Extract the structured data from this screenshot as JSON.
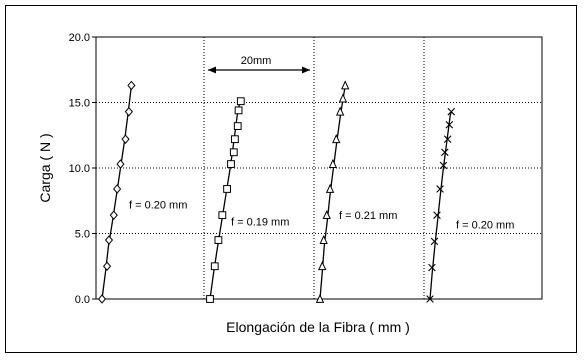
{
  "chart_data": {
    "type": "scatter",
    "xlabel": "Elongación de la Fibra ( mm )",
    "ylabel": "Carga ( N )",
    "ylim": [
      0,
      20
    ],
    "yticks": [
      "0.0",
      "5.0",
      "10.0",
      "15.0",
      "20.0"
    ],
    "grid": "vertical dotted separators and horizontal dotted gridlines",
    "annotation": "20mm",
    "series": [
      {
        "marker": "diamond",
        "label": "f  = 0.20 mm",
        "points": [
          [
            0.0,
            0.0
          ],
          [
            0.18,
            2.5
          ],
          [
            0.25,
            4.5
          ],
          [
            0.42,
            6.4
          ],
          [
            0.54,
            8.4
          ],
          [
            0.66,
            10.3
          ],
          [
            0.84,
            12.2
          ],
          [
            0.96,
            14.3
          ],
          [
            1.05,
            16.3
          ]
        ],
        "fit": [
          [
            0.0,
            0.0
          ],
          [
            0.12,
            2.0
          ],
          [
            0.23,
            4.0
          ],
          [
            0.38,
            6.0
          ],
          [
            0.52,
            8.0
          ],
          [
            0.66,
            10.0
          ],
          [
            0.8,
            12.0
          ],
          [
            0.92,
            14.0
          ],
          [
            1.05,
            16.3
          ]
        ]
      },
      {
        "marker": "square",
        "label": "f = 0.19 mm",
        "points": [
          [
            0.0,
            0.0
          ],
          [
            0.17,
            2.5
          ],
          [
            0.3,
            4.5
          ],
          [
            0.44,
            6.4
          ],
          [
            0.61,
            8.4
          ],
          [
            0.75,
            10.3
          ],
          [
            0.85,
            11.2
          ],
          [
            0.89,
            12.2
          ],
          [
            0.99,
            13.2
          ],
          [
            1.02,
            14.4
          ],
          [
            1.1,
            15.1
          ]
        ],
        "fit": [
          [
            0.0,
            0.0
          ],
          [
            0.13,
            2.0
          ],
          [
            0.27,
            4.0
          ],
          [
            0.42,
            6.0
          ],
          [
            0.57,
            8.0
          ],
          [
            0.72,
            10.0
          ],
          [
            0.85,
            12.0
          ],
          [
            0.97,
            14.0
          ],
          [
            1.08,
            15.2
          ]
        ]
      },
      {
        "marker": "triangle",
        "label": "f = 0.21 mm",
        "points": [
          [
            0.0,
            0.0
          ],
          [
            0.08,
            2.5
          ],
          [
            0.13,
            4.5
          ],
          [
            0.24,
            6.4
          ],
          [
            0.36,
            8.4
          ],
          [
            0.46,
            10.3
          ],
          [
            0.58,
            12.2
          ],
          [
            0.72,
            14.3
          ],
          [
            0.82,
            15.3
          ],
          [
            0.9,
            16.3
          ]
        ],
        "fit": [
          [
            0.0,
            0.0
          ],
          [
            0.08,
            2.0
          ],
          [
            0.15,
            4.0
          ],
          [
            0.26,
            6.0
          ],
          [
            0.36,
            8.0
          ],
          [
            0.48,
            10.0
          ],
          [
            0.6,
            12.0
          ],
          [
            0.73,
            14.0
          ],
          [
            0.9,
            16.3
          ]
        ]
      },
      {
        "marker": "x",
        "label": "f = 0.20 mm",
        "points": [
          [
            0.0,
            0.0
          ],
          [
            0.07,
            2.4
          ],
          [
            0.16,
            4.4
          ],
          [
            0.25,
            6.4
          ],
          [
            0.36,
            8.4
          ],
          [
            0.48,
            10.2
          ],
          [
            0.53,
            11.2
          ],
          [
            0.63,
            12.2
          ],
          [
            0.69,
            13.3
          ],
          [
            0.76,
            14.3
          ]
        ],
        "fit": [
          [
            0.0,
            0.0
          ],
          [
            0.08,
            2.0
          ],
          [
            0.17,
            4.0
          ],
          [
            0.27,
            6.0
          ],
          [
            0.37,
            8.0
          ],
          [
            0.48,
            10.0
          ],
          [
            0.6,
            12.0
          ],
          [
            0.72,
            14.0
          ],
          [
            0.76,
            14.3
          ]
        ]
      }
    ]
  }
}
